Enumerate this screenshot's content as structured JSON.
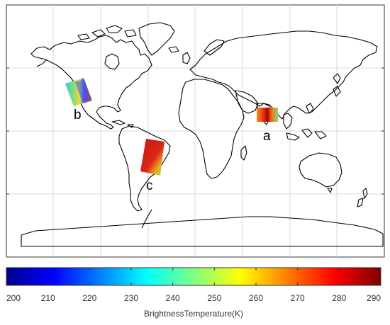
{
  "map": {
    "regions": [
      {
        "id": "a",
        "label": "a"
      },
      {
        "id": "b",
        "label": "b"
      },
      {
        "id": "c",
        "label": "c"
      }
    ]
  },
  "colorbar": {
    "min": 200,
    "max": 290,
    "ticks": [
      "200",
      "210",
      "220",
      "230",
      "240",
      "250",
      "260",
      "270",
      "280",
      "290"
    ],
    "title": "BrightnessTemperature(K)",
    "colormap": "jet"
  },
  "colors": {
    "coastline": "#000000",
    "grid": "#d9d9d9",
    "frame": "#333333"
  }
}
